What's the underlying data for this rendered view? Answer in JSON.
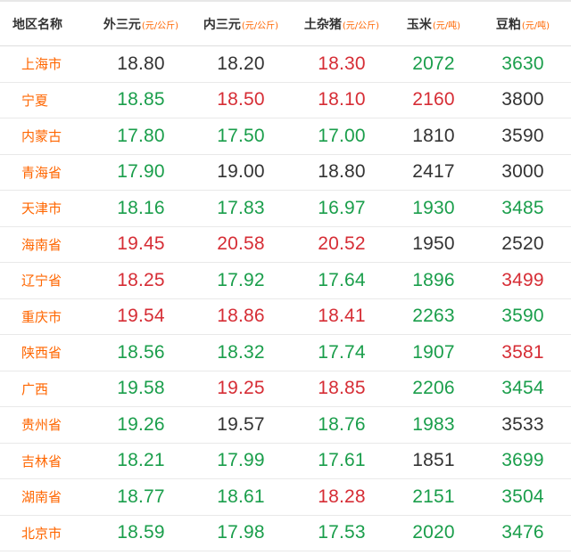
{
  "table": {
    "headers": [
      {
        "label": "地区名称",
        "unit": ""
      },
      {
        "label": "外三元",
        "unit": "(元/公斤)"
      },
      {
        "label": "内三元",
        "unit": "(元/公斤)"
      },
      {
        "label": "土杂猪",
        "unit": "(元/公斤)"
      },
      {
        "label": "玉米",
        "unit": "(元/吨)"
      },
      {
        "label": "豆粕",
        "unit": "(元/吨)"
      }
    ],
    "status_colors": {
      "up": "#d62d35",
      "down": "#1a9e4b",
      "flat": "#333333",
      "region": "#ff6600"
    },
    "rows": [
      {
        "region": "上海市",
        "cells": [
          {
            "v": "18.80",
            "s": "flat"
          },
          {
            "v": "18.20",
            "s": "flat"
          },
          {
            "v": "18.30",
            "s": "up"
          },
          {
            "v": "2072",
            "s": "down"
          },
          {
            "v": "3630",
            "s": "down"
          }
        ]
      },
      {
        "region": "宁夏",
        "cells": [
          {
            "v": "18.85",
            "s": "down"
          },
          {
            "v": "18.50",
            "s": "up"
          },
          {
            "v": "18.10",
            "s": "up"
          },
          {
            "v": "2160",
            "s": "up"
          },
          {
            "v": "3800",
            "s": "flat"
          }
        ]
      },
      {
        "region": "内蒙古",
        "cells": [
          {
            "v": "17.80",
            "s": "down"
          },
          {
            "v": "17.50",
            "s": "down"
          },
          {
            "v": "17.00",
            "s": "down"
          },
          {
            "v": "1810",
            "s": "flat"
          },
          {
            "v": "3590",
            "s": "flat"
          }
        ]
      },
      {
        "region": "青海省",
        "cells": [
          {
            "v": "17.90",
            "s": "down"
          },
          {
            "v": "19.00",
            "s": "flat"
          },
          {
            "v": "18.80",
            "s": "flat"
          },
          {
            "v": "2417",
            "s": "flat"
          },
          {
            "v": "3000",
            "s": "flat"
          }
        ]
      },
      {
        "region": "天津市",
        "cells": [
          {
            "v": "18.16",
            "s": "down"
          },
          {
            "v": "17.83",
            "s": "down"
          },
          {
            "v": "16.97",
            "s": "down"
          },
          {
            "v": "1930",
            "s": "down"
          },
          {
            "v": "3485",
            "s": "down"
          }
        ]
      },
      {
        "region": "海南省",
        "cells": [
          {
            "v": "19.45",
            "s": "up"
          },
          {
            "v": "20.58",
            "s": "up"
          },
          {
            "v": "20.52",
            "s": "up"
          },
          {
            "v": "1950",
            "s": "flat"
          },
          {
            "v": "2520",
            "s": "flat"
          }
        ]
      },
      {
        "region": "辽宁省",
        "cells": [
          {
            "v": "18.25",
            "s": "up"
          },
          {
            "v": "17.92",
            "s": "down"
          },
          {
            "v": "17.64",
            "s": "down"
          },
          {
            "v": "1896",
            "s": "down"
          },
          {
            "v": "3499",
            "s": "up"
          }
        ]
      },
      {
        "region": "重庆市",
        "cells": [
          {
            "v": "19.54",
            "s": "up"
          },
          {
            "v": "18.86",
            "s": "up"
          },
          {
            "v": "18.41",
            "s": "up"
          },
          {
            "v": "2263",
            "s": "down"
          },
          {
            "v": "3590",
            "s": "down"
          }
        ]
      },
      {
        "region": "陕西省",
        "cells": [
          {
            "v": "18.56",
            "s": "down"
          },
          {
            "v": "18.32",
            "s": "down"
          },
          {
            "v": "17.74",
            "s": "down"
          },
          {
            "v": "1907",
            "s": "down"
          },
          {
            "v": "3581",
            "s": "up"
          }
        ]
      },
      {
        "region": "广西",
        "cells": [
          {
            "v": "19.58",
            "s": "down"
          },
          {
            "v": "19.25",
            "s": "up"
          },
          {
            "v": "18.85",
            "s": "up"
          },
          {
            "v": "2206",
            "s": "down"
          },
          {
            "v": "3454",
            "s": "down"
          }
        ]
      },
      {
        "region": "贵州省",
        "cells": [
          {
            "v": "19.26",
            "s": "down"
          },
          {
            "v": "19.57",
            "s": "flat"
          },
          {
            "v": "18.76",
            "s": "down"
          },
          {
            "v": "1983",
            "s": "down"
          },
          {
            "v": "3533",
            "s": "flat"
          }
        ]
      },
      {
        "region": "吉林省",
        "cells": [
          {
            "v": "18.21",
            "s": "down"
          },
          {
            "v": "17.99",
            "s": "down"
          },
          {
            "v": "17.61",
            "s": "down"
          },
          {
            "v": "1851",
            "s": "flat"
          },
          {
            "v": "3699",
            "s": "down"
          }
        ]
      },
      {
        "region": "湖南省",
        "cells": [
          {
            "v": "18.77",
            "s": "down"
          },
          {
            "v": "18.61",
            "s": "down"
          },
          {
            "v": "18.28",
            "s": "up"
          },
          {
            "v": "2151",
            "s": "down"
          },
          {
            "v": "3504",
            "s": "down"
          }
        ]
      },
      {
        "region": "北京市",
        "cells": [
          {
            "v": "18.59",
            "s": "down"
          },
          {
            "v": "17.98",
            "s": "down"
          },
          {
            "v": "17.53",
            "s": "down"
          },
          {
            "v": "2020",
            "s": "down"
          },
          {
            "v": "3476",
            "s": "down"
          }
        ]
      }
    ]
  }
}
